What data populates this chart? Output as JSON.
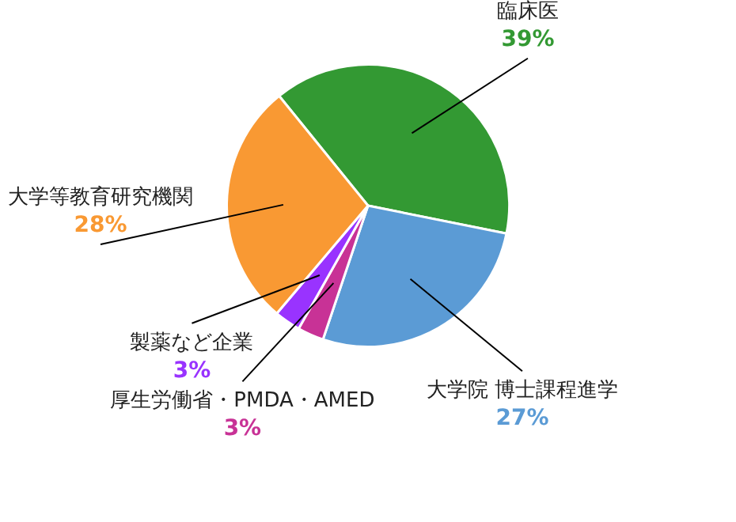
{
  "chart_data": {
    "type": "pie",
    "categories": [
      "臨床医",
      "大学院 博士課程進学",
      "厚生労働省・PMDA・AMED",
      "製薬など企業",
      "大学等教育研究機関"
    ],
    "values": [
      39,
      27,
      3,
      3,
      28
    ],
    "colors": [
      "#339933",
      "#5b9bd5",
      "#c83296",
      "#9933ff",
      "#f99933"
    ],
    "value_labels": [
      "39%",
      "27%",
      "3%",
      "3%",
      "28%"
    ],
    "legend": false
  }
}
